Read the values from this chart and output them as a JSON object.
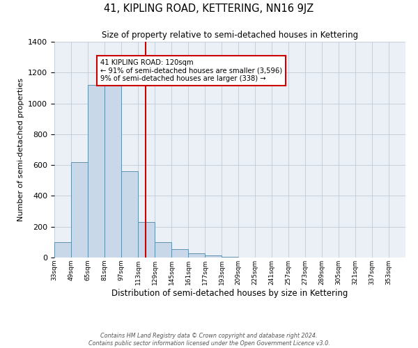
{
  "title": "41, KIPLING ROAD, KETTERING, NN16 9JZ",
  "subtitle": "Size of property relative to semi-detached houses in Kettering",
  "xlabel": "Distribution of semi-detached houses by size in Kettering",
  "ylabel": "Number of semi-detached properties",
  "bin_labels": [
    "33sqm",
    "49sqm",
    "65sqm",
    "81sqm",
    "97sqm",
    "113sqm",
    "129sqm",
    "145sqm",
    "161sqm",
    "177sqm",
    "193sqm",
    "209sqm",
    "225sqm",
    "241sqm",
    "257sqm",
    "273sqm",
    "289sqm",
    "305sqm",
    "321sqm",
    "337sqm",
    "353sqm"
  ],
  "bin_edges": [
    33,
    49,
    65,
    81,
    97,
    113,
    129,
    145,
    161,
    177,
    193,
    209,
    225,
    241,
    257,
    273,
    289,
    305,
    321,
    337,
    353,
    369
  ],
  "bar_values": [
    100,
    620,
    1120,
    1120,
    560,
    230,
    100,
    52,
    25,
    15,
    5,
    0,
    0,
    0,
    0,
    0,
    0,
    0,
    0,
    0,
    0
  ],
  "bar_facecolor": "#c8d8e8",
  "bar_edgecolor": "#6090b0",
  "property_line_x": 120,
  "property_line_color": "#cc0000",
  "annotation_text": "41 KIPLING ROAD: 120sqm\n← 91% of semi-detached houses are smaller (3,596)\n9% of semi-detached houses are larger (338) →",
  "annotation_box_edgecolor": "#cc0000",
  "ylim": [
    0,
    1400
  ],
  "yticks": [
    0,
    200,
    400,
    600,
    800,
    1000,
    1200,
    1400
  ],
  "grid_color": "#c0ccd8",
  "bg_color": "#eaf0f6",
  "footer_line1": "Contains HM Land Registry data © Crown copyright and database right 2024.",
  "footer_line2": "Contains public sector information licensed under the Open Government Licence v3.0."
}
